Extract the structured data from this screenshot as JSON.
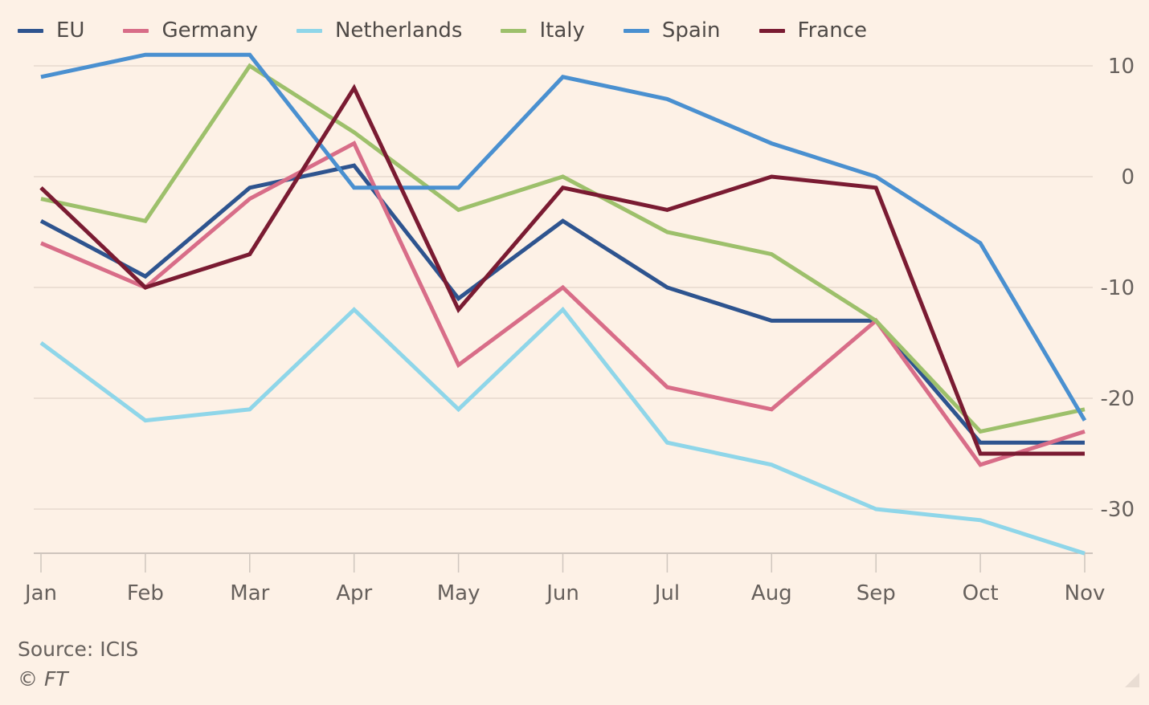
{
  "chart_data": {
    "type": "line",
    "categories": [
      "Jan",
      "Feb",
      "Mar",
      "Apr",
      "May",
      "Jun",
      "Jul",
      "Aug",
      "Sep",
      "Oct",
      "Nov"
    ],
    "ylim": [
      -34,
      11
    ],
    "yticks": [
      10,
      0,
      -10,
      -20,
      -30
    ],
    "ytick_labels": [
      "10",
      "0",
      "-10",
      "-20",
      "-30"
    ],
    "grid": true,
    "legend_position": "top",
    "series": [
      {
        "name": "EU",
        "color": "#2e548f",
        "values": [
          -4,
          -9,
          -1,
          1,
          -11,
          -4,
          -10,
          -13,
          -13,
          -24,
          -24
        ]
      },
      {
        "name": "Germany",
        "color": "#d86d88",
        "values": [
          -6,
          -10,
          -2,
          3,
          -17,
          -10,
          -19,
          -21,
          -13,
          -26,
          -23
        ]
      },
      {
        "name": "Netherlands",
        "color": "#8fd6e9",
        "values": [
          -15,
          -22,
          -21,
          -12,
          -21,
          -12,
          -24,
          -26,
          -30,
          -31,
          -34
        ]
      },
      {
        "name": "Italy",
        "color": "#9dc06b",
        "values": [
          -2,
          -4,
          10,
          4,
          -3,
          0,
          -5,
          -7,
          -13,
          -23,
          -21
        ]
      },
      {
        "name": "Spain",
        "color": "#4a90d0",
        "values": [
          9,
          11,
          11,
          -1,
          -1,
          9,
          7,
          3,
          0,
          -6,
          -22
        ]
      },
      {
        "name": "France",
        "color": "#7a1b32",
        "values": [
          -1,
          -10,
          -7,
          8,
          -12,
          -1,
          -3,
          0,
          -1,
          -25,
          -25
        ]
      }
    ]
  },
  "footer": {
    "source": "Source: ICIS",
    "copyright": "© FT"
  }
}
